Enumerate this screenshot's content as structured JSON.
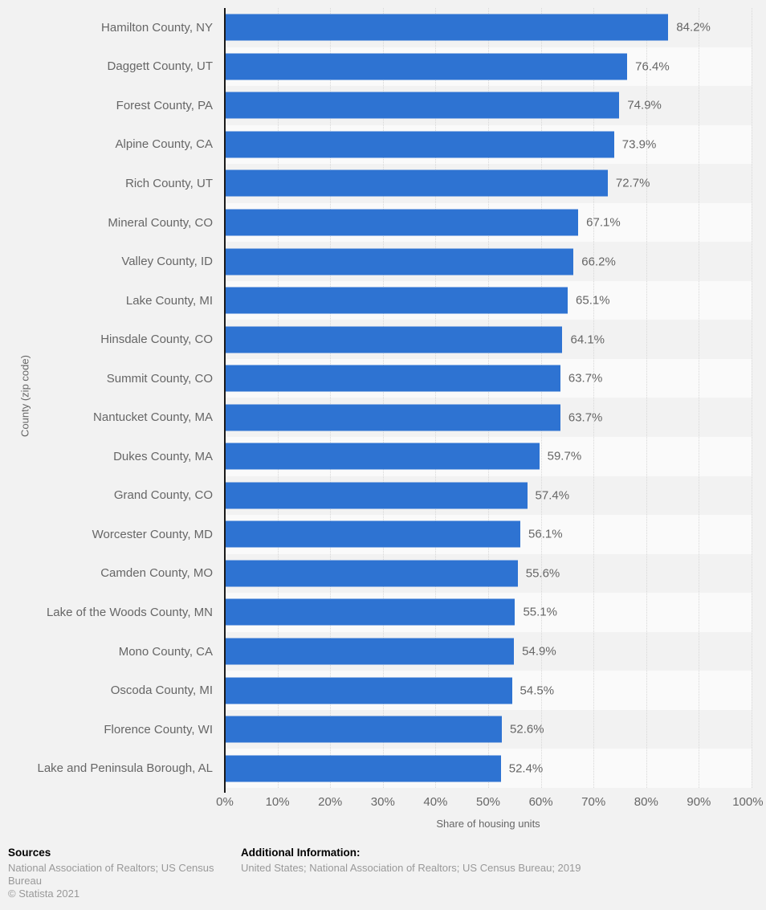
{
  "chart_data": {
    "type": "bar",
    "orientation": "horizontal",
    "title": "",
    "xlabel": "Share of housing units",
    "ylabel": "County (zip code)",
    "xlim": [
      0,
      100
    ],
    "grid": "vertical-dotted",
    "bar_color": "#2e73d2",
    "x_ticks": [
      "0%",
      "10%",
      "20%",
      "30%",
      "40%",
      "50%",
      "60%",
      "70%",
      "80%",
      "90%",
      "100%"
    ],
    "categories": [
      "Hamilton County, NY",
      "Daggett County, UT",
      "Forest County, PA",
      "Alpine County, CA",
      "Rich County, UT",
      "Mineral County, CO",
      "Valley County, ID",
      "Lake County, MI",
      "Hinsdale County, CO",
      "Summit County, CO",
      "Nantucket County, MA",
      "Dukes County, MA",
      "Grand County, CO",
      "Worcester County, MD",
      "Camden County, MO",
      "Lake of the Woods County, MN",
      "Mono County, CA",
      "Oscoda County, MI",
      "Florence County, WI",
      "Lake and Peninsula Borough, AL"
    ],
    "values": [
      84.2,
      76.4,
      74.9,
      73.9,
      72.7,
      67.1,
      66.2,
      65.1,
      64.1,
      63.7,
      63.7,
      59.7,
      57.4,
      56.1,
      55.6,
      55.1,
      54.9,
      54.5,
      52.6,
      52.4
    ],
    "labels": [
      "84.2%",
      "76.4%",
      "74.9%",
      "73.9%",
      "72.7%",
      "67.1%",
      "66.2%",
      "65.1%",
      "64.1%",
      "63.7%",
      "63.7%",
      "59.7%",
      "57.4%",
      "56.1%",
      "55.6%",
      "55.1%",
      "54.9%",
      "54.5%",
      "52.6%",
      "52.4%"
    ]
  },
  "colors": {
    "bar": "#2e73d2",
    "page_bg": "#f2f2f2",
    "row_stripe": "#fafafa",
    "axis": "#1a1a1a",
    "gridline": "#d7d7d7",
    "label_text": "#666666",
    "footer_text": "#999999"
  },
  "footer": {
    "sources_heading": "Sources",
    "sources_text": "National Association of Realtors; US Census Bureau",
    "copyright": "© Statista 2021",
    "additional_heading": "Additional Information:",
    "additional_text": "United States; National Association of Realtors; US Census Bureau; 2019"
  }
}
